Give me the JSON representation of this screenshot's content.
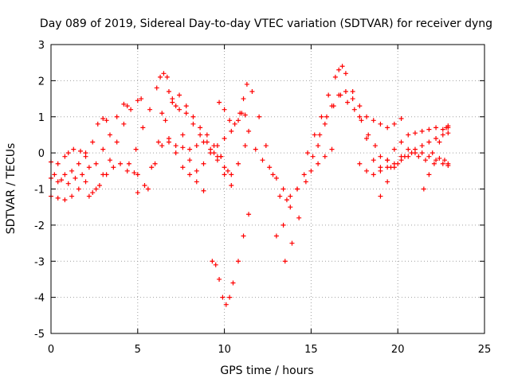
{
  "chart_data": {
    "type": "scatter",
    "title": "Day 089 of 2019, Sidereal Day-to-day VTEC variation (SDTVAR) for receiver dyng",
    "xlabel": "GPS time / hours",
    "ylabel": "SDTVAR / TECUs",
    "xlim": [
      0,
      25
    ],
    "ylim": [
      -5,
      3
    ],
    "xticks": [
      "0",
      "5",
      "10",
      "15",
      "20",
      "25"
    ],
    "yticks": [
      "-5",
      "-4",
      "-3",
      "-2",
      "-1",
      "0",
      "1",
      "2",
      "3"
    ],
    "grid": true,
    "marker": "plus",
    "color": "#ff0000",
    "series": [
      {
        "x": [
          0.0,
          0.4,
          0.8,
          1.2,
          1.6,
          2.0,
          2.4,
          2.8,
          3.2,
          3.6,
          4.0,
          4.4,
          4.8,
          5.0
        ],
        "y": [
          -1.2,
          -1.25,
          -1.3,
          -1.2,
          -1.0,
          -0.8,
          -1.1,
          -0.9,
          -0.6,
          -0.4,
          -0.3,
          -0.5,
          -0.55,
          -0.6
        ]
      },
      {
        "x": [
          0.0,
          0.4,
          0.8,
          1.0,
          1.3,
          1.7,
          2.0
        ],
        "y": [
          -0.25,
          -0.3,
          -0.1,
          0.0,
          0.1,
          0.05,
          0.0
        ]
      },
      {
        "x": [
          0.0,
          0.4,
          0.8,
          1.2,
          1.6,
          2.0,
          2.4,
          2.7,
          3.0,
          3.2
        ],
        "y": [
          -0.7,
          -0.8,
          -0.6,
          -0.5,
          -0.3,
          -0.1,
          0.3,
          0.8,
          0.95,
          0.9
        ]
      },
      {
        "x": [
          0.2,
          0.6,
          1.0,
          1.4,
          1.8,
          2.2,
          2.6,
          3.0,
          3.4,
          3.8,
          4.2,
          4.4
        ],
        "y": [
          -0.6,
          -0.75,
          -0.85,
          -0.7,
          -0.6,
          -0.4,
          -0.3,
          0.1,
          0.5,
          1.0,
          1.35,
          1.3
        ]
      },
      {
        "x": [
          2.2,
          2.6,
          3.0,
          3.4,
          3.8,
          4.2,
          4.6,
          5.0,
          5.2
        ],
        "y": [
          -1.2,
          -1.0,
          -0.6,
          -0.2,
          0.3,
          0.8,
          1.2,
          1.45,
          1.5
        ]
      },
      {
        "x": [
          4.5,
          4.9,
          5.3,
          5.7,
          6.1,
          6.3,
          6.5,
          6.7,
          7.0,
          7.4,
          7.8,
          8.2,
          8.6,
          9.0,
          9.4,
          9.8
        ],
        "y": [
          -0.3,
          0.1,
          0.7,
          1.2,
          1.8,
          2.1,
          2.2,
          2.1,
          1.5,
          1.2,
          1.1,
          0.8,
          0.5,
          0.3,
          0.0,
          -0.1
        ]
      },
      {
        "x": [
          5.0,
          5.4,
          5.8,
          6.2,
          6.6,
          7.0,
          7.4,
          7.8,
          8.2,
          8.6,
          9.0,
          9.4,
          9.8,
          10.2
        ],
        "y": [
          -1.1,
          -0.9,
          -0.4,
          0.3,
          0.9,
          1.4,
          1.6,
          1.3,
          1.0,
          0.7,
          0.5,
          0.2,
          -0.1,
          -0.5
        ]
      },
      {
        "x": [
          5.6,
          6.0,
          6.4,
          6.8,
          7.2,
          7.6,
          8.0,
          8.4,
          8.8,
          9.2,
          9.6,
          10.0,
          10.4
        ],
        "y": [
          -1.0,
          -0.3,
          0.2,
          0.3,
          0.2,
          0.15,
          0.1,
          0.2,
          0.3,
          0.1,
          -0.2,
          -0.6,
          -0.9
        ]
      },
      {
        "x": [
          6.4,
          6.8,
          7.2,
          7.6,
          8.0,
          8.4,
          8.8
        ],
        "y": [
          1.1,
          1.7,
          1.3,
          0.5,
          -0.2,
          -0.8,
          -1.05
        ]
      },
      {
        "x": [
          6.8,
          7.2,
          7.6,
          8.0,
          8.4,
          8.8,
          9.2,
          9.6,
          10.0,
          10.4,
          10.8,
          11.2
        ],
        "y": [
          0.4,
          0.0,
          -0.4,
          -0.6,
          -0.5,
          -0.3,
          0.0,
          -0.1,
          -0.4,
          -0.6,
          -0.3,
          0.2
        ]
      },
      {
        "x": [
          9.3,
          9.5,
          9.7,
          9.9,
          10.1,
          10.3,
          10.5,
          10.8,
          11.1,
          11.4
        ],
        "y": [
          -3.0,
          -3.1,
          -3.5,
          -4.0,
          -4.2,
          -4.0,
          -3.6,
          -3.0,
          -2.3,
          -1.7
        ]
      },
      {
        "x": [
          9.7,
          10.0,
          10.3,
          10.6,
          10.9,
          11.1,
          11.3,
          11.6,
          12.0,
          12.4,
          12.8,
          13.2,
          13.6
        ],
        "y": [
          1.4,
          1.2,
          0.9,
          0.8,
          1.1,
          1.5,
          1.9,
          1.7,
          1.0,
          0.2,
          -0.6,
          -1.2,
          -1.3
        ]
      },
      {
        "x": [
          9.6,
          10.0,
          10.4,
          10.8,
          11.0,
          11.2,
          11.4,
          11.8,
          12.2,
          12.6,
          13.0,
          13.4,
          13.8,
          14.2
        ],
        "y": [
          0.2,
          0.4,
          0.6,
          0.9,
          1.1,
          1.05,
          0.6,
          0.1,
          -0.2,
          -0.4,
          -0.7,
          -1.0,
          -1.2,
          -1.0
        ]
      },
      {
        "x": [
          13.0,
          13.4,
          13.8,
          14.2,
          14.6,
          15.0,
          15.4,
          15.8,
          16.2
        ],
        "y": [
          -2.3,
          -2.0,
          -1.5,
          -1.0,
          -0.6,
          -0.5,
          -0.3,
          -0.1,
          0.1
        ]
      },
      {
        "x": [
          13.5,
          13.9,
          14.3,
          14.7,
          15.1,
          15.5,
          15.9,
          16.3,
          16.7,
          17.1,
          17.5,
          17.9,
          18.3,
          18.7
        ],
        "y": [
          -3.0,
          -2.5,
          -1.8,
          -0.8,
          -0.1,
          0.5,
          1.0,
          1.3,
          1.6,
          1.4,
          1.2,
          0.9,
          0.5,
          0.2
        ]
      },
      {
        "x": [
          14.8,
          15.2,
          15.6,
          16.0,
          16.4,
          16.6,
          16.8,
          17.0,
          17.4,
          17.8,
          18.2,
          18.6,
          19.0,
          19.4,
          19.8,
          20.2
        ],
        "y": [
          0.0,
          0.5,
          1.0,
          1.6,
          2.1,
          2.3,
          2.4,
          2.2,
          1.7,
          1.3,
          1.0,
          0.9,
          0.8,
          0.7,
          0.8,
          0.95
        ]
      },
      {
        "x": [
          15.4,
          15.8,
          16.2,
          16.6,
          17.0,
          17.4,
          17.8,
          18.2,
          18.6,
          19.0,
          19.4
        ],
        "y": [
          0.2,
          0.8,
          1.3,
          1.6,
          1.7,
          1.5,
          1.0,
          0.4,
          -0.2,
          -0.5,
          -0.4
        ]
      },
      {
        "x": [
          17.8,
          18.2,
          18.6,
          19.0,
          19.4,
          19.8,
          20.2,
          20.6,
          21.0,
          21.4,
          21.8,
          22.2,
          22.6,
          22.9
        ],
        "y": [
          -0.3,
          -0.5,
          -0.6,
          -0.4,
          -0.2,
          0.1,
          0.3,
          0.5,
          0.55,
          0.6,
          0.65,
          0.7,
          0.65,
          0.7
        ]
      },
      {
        "x": [
          19.0,
          19.4,
          19.8,
          20.2,
          20.6,
          21.0,
          21.4,
          21.8,
          22.2,
          22.6,
          22.9
        ],
        "y": [
          -1.2,
          -0.8,
          -0.4,
          -0.2,
          -0.1,
          0.0,
          0.2,
          0.3,
          0.4,
          0.5,
          0.55
        ]
      },
      {
        "x": [
          19.6,
          20.0,
          20.4,
          20.8,
          21.2,
          21.6,
          22.0,
          22.4,
          22.8,
          22.9
        ],
        "y": [
          -0.4,
          -0.3,
          -0.1,
          0.0,
          -0.1,
          -0.2,
          0.0,
          0.3,
          0.7,
          0.75
        ]
      },
      {
        "x": [
          21.5,
          21.8,
          22.1,
          22.4,
          22.7,
          22.9
        ],
        "y": [
          -1.0,
          -0.6,
          -0.3,
          -0.15,
          -0.2,
          -0.3
        ]
      },
      {
        "x": [
          19.0,
          19.4,
          19.8,
          20.2,
          20.6,
          21.0,
          21.4,
          21.8,
          22.2,
          22.6,
          22.9
        ],
        "y": [
          -0.1,
          -0.2,
          -0.3,
          -0.1,
          0.1,
          0.1,
          0.0,
          -0.1,
          -0.2,
          -0.3,
          -0.35
        ]
      }
    ]
  }
}
